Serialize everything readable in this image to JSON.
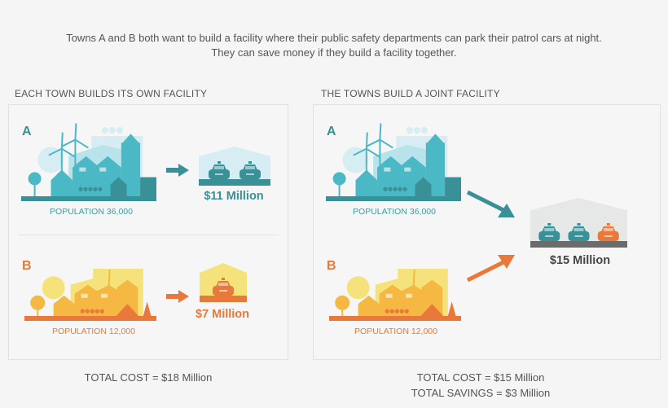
{
  "intro": {
    "line1": "Towns A and B both want to build a facility where their public safety departments can park their patrol cars at night.",
    "line2": "They can save money if they build a facility together."
  },
  "colors": {
    "teal_dark": "#3a9097",
    "teal": "#4bb8c6",
    "teal_light": "#d6eef3",
    "orange": "#e8793a",
    "orange_mid": "#f4b843",
    "yellow": "#f6e27a",
    "gray": "#6b6b6b",
    "gray_light": "#e6e8e8"
  },
  "left": {
    "heading": "EACH TOWN BUILDS ITS OWN FACILITY",
    "town_a": {
      "letter": "A",
      "population": "POPULATION 36,000",
      "cost": "$11 Million",
      "cars": 2
    },
    "town_b": {
      "letter": "B",
      "population": "POPULATION 12,000",
      "cost": "$7 Million",
      "cars": 1
    },
    "total": "TOTAL COST = $18 Million"
  },
  "right": {
    "heading": "THE TOWNS BUILD A JOINT FACILITY",
    "town_a": {
      "letter": "A",
      "population": "POPULATION 36,000"
    },
    "town_b": {
      "letter": "B",
      "population": "POPULATION 12,000"
    },
    "joint_cost": "$15 Million",
    "total": "TOTAL COST = $15 Million",
    "savings": "TOTAL SAVINGS = $3 Million"
  }
}
